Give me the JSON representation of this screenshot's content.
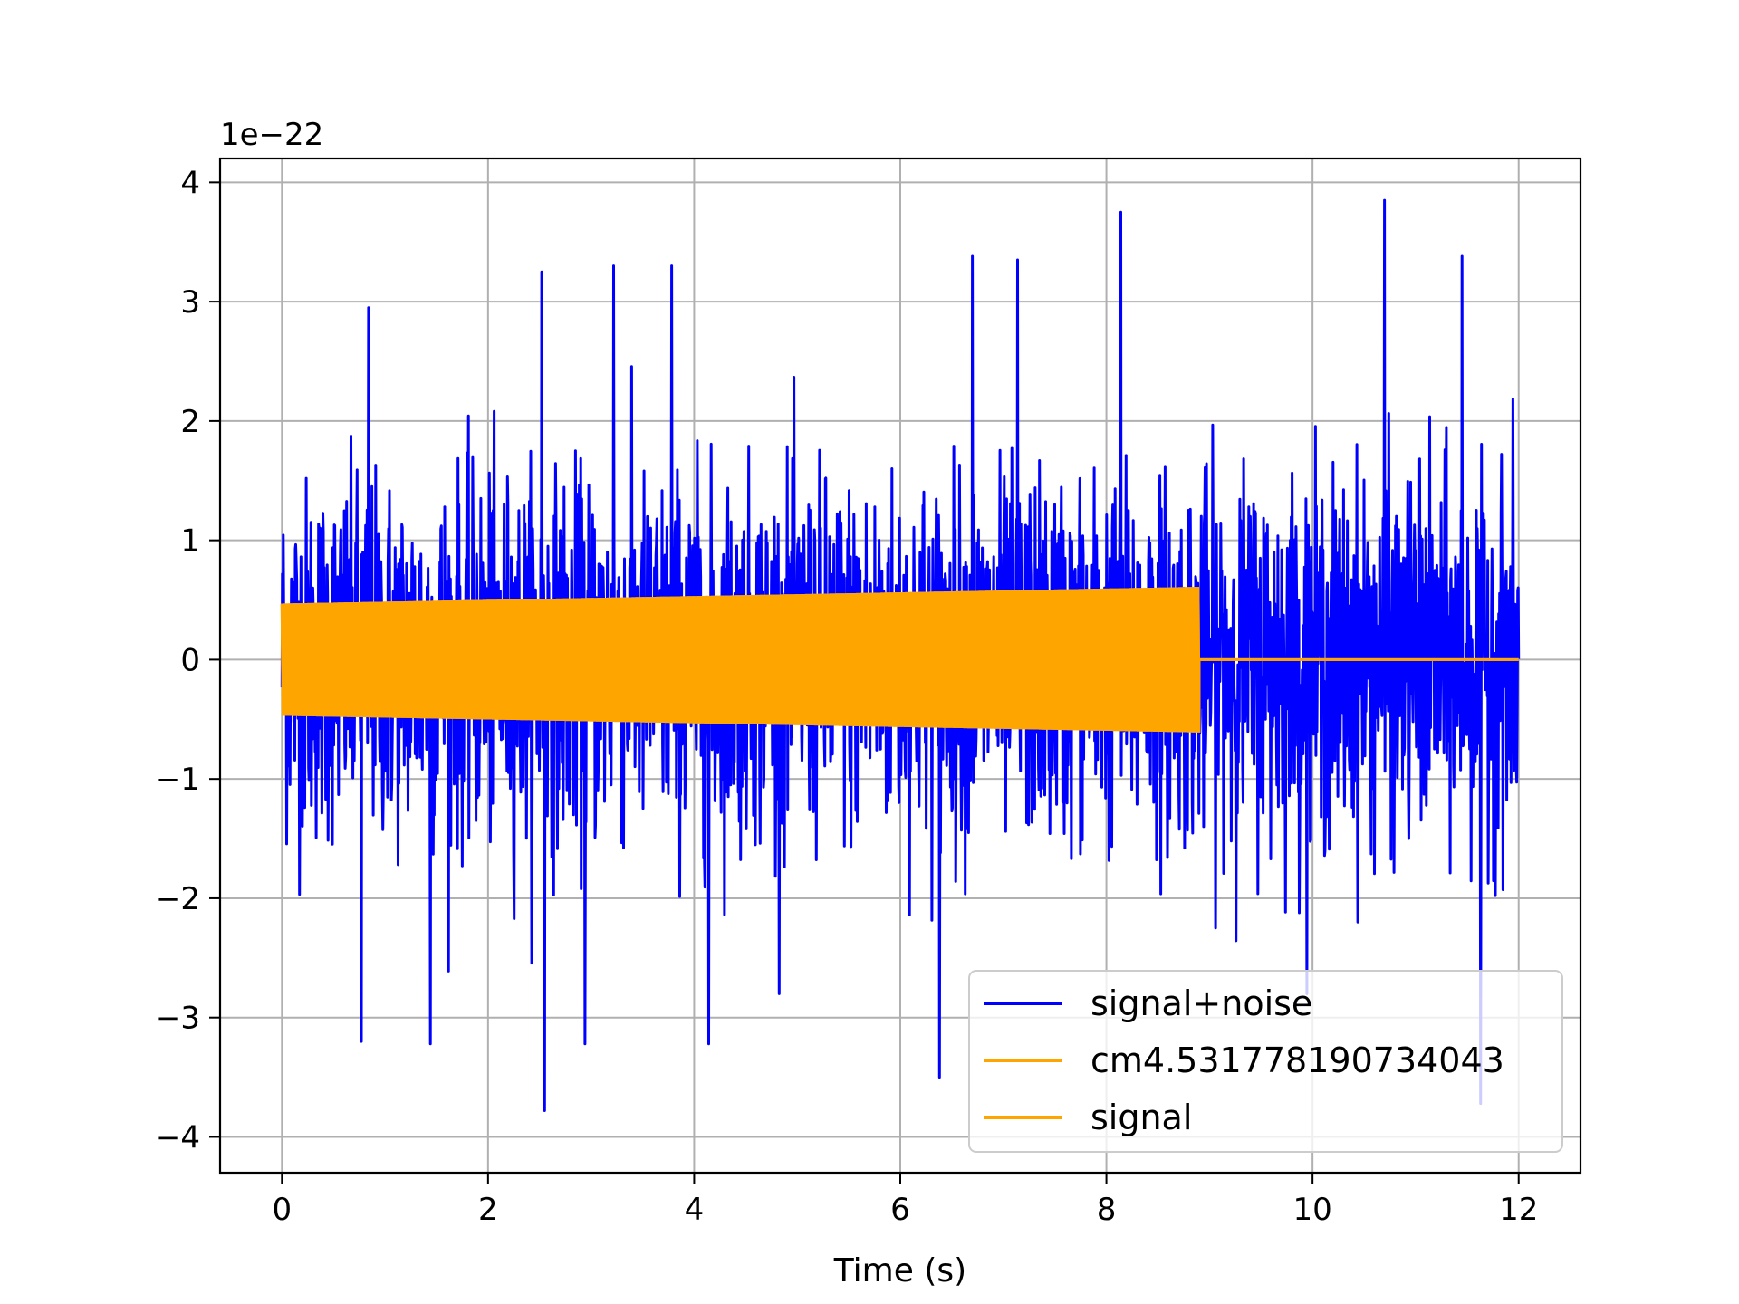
{
  "chart_data": {
    "type": "line",
    "title": "",
    "xlabel": "Time (s)",
    "ylabel": "",
    "y_offset_text": "1e−22",
    "xlim": [
      -0.6,
      12.6
    ],
    "ylim": [
      -4.3,
      4.2
    ],
    "x_ticks": [
      0,
      2,
      4,
      6,
      8,
      10,
      12
    ],
    "x_tick_labels": [
      "0",
      "2",
      "4",
      "6",
      "8",
      "10",
      "12"
    ],
    "y_ticks": [
      -4,
      -3,
      -2,
      -1,
      0,
      1,
      2,
      3,
      4
    ],
    "y_tick_labels": [
      "−4",
      "−3",
      "−2",
      "−1",
      "0",
      "1",
      "2",
      "3",
      "4"
    ],
    "grid": true,
    "legend_position": "lower-right",
    "series": [
      {
        "name": "signal+noise",
        "color": "#0000ff",
        "x_range": [
          0,
          12
        ],
        "typical_amplitude": 1.6,
        "notable_peaks": [
          {
            "x": 0.84,
            "y": 2.95
          },
          {
            "x": 2.52,
            "y": 3.25
          },
          {
            "x": 3.22,
            "y": 3.3
          },
          {
            "x": 3.78,
            "y": 3.3
          },
          {
            "x": 6.7,
            "y": 3.38
          },
          {
            "x": 7.14,
            "y": 3.35
          },
          {
            "x": 8.14,
            "y": 3.75
          },
          {
            "x": 10.7,
            "y": 3.85
          },
          {
            "x": 11.45,
            "y": 3.38
          }
        ],
        "notable_troughs": [
          {
            "x": 0.77,
            "y": -3.2
          },
          {
            "x": 1.44,
            "y": -3.22
          },
          {
            "x": 2.55,
            "y": -3.78
          },
          {
            "x": 2.94,
            "y": -3.22
          },
          {
            "x": 4.14,
            "y": -3.22
          },
          {
            "x": 6.38,
            "y": -3.5
          },
          {
            "x": 11.63,
            "y": -3.72
          }
        ]
      },
      {
        "name": "cm4.531778190734043",
        "color": "#ffa500",
        "x_range": [
          0,
          12
        ],
        "envelope_start": [
          0,
          0.47
        ],
        "envelope_end": [
          8.9,
          0.61
        ],
        "cutoff_x": 8.9,
        "value_after_cutoff": 0
      },
      {
        "name": "signal",
        "color": "#ffa500",
        "x_range": [
          0,
          12
        ],
        "envelope_start": [
          0,
          0.47
        ],
        "envelope_end": [
          8.9,
          0.61
        ],
        "cutoff_x": 8.9,
        "value_after_cutoff": 0
      }
    ]
  }
}
